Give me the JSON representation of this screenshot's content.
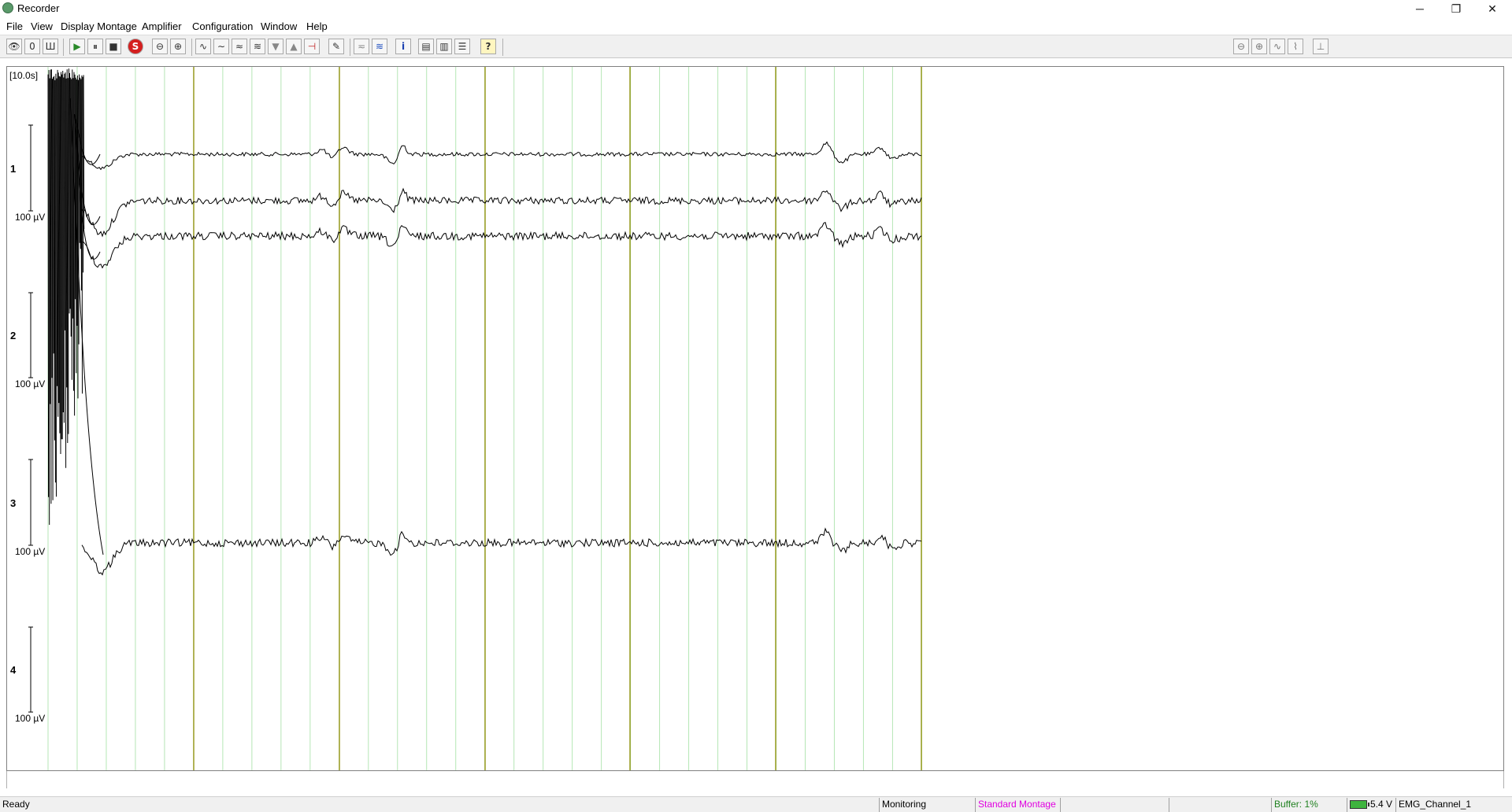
{
  "window": {
    "title": "Recorder",
    "controls": {
      "minimize": "─",
      "restore": "❐",
      "close": "✕"
    }
  },
  "menu": [
    "File",
    "View",
    "Display Montage",
    "Amplifier",
    "Configuration",
    "Window",
    "Help"
  ],
  "toolbar": {
    "buttons": [
      {
        "name": "monitor-eye-icon",
        "glyph": "👁"
      },
      {
        "name": "zero-impedance-icon",
        "glyph": "0"
      },
      {
        "name": "impedance-icon",
        "glyph": "Ш"
      },
      {
        "name": "play-icon",
        "glyph": "▶"
      },
      {
        "name": "pause-icon",
        "glyph": "⏸"
      },
      {
        "name": "stop-icon",
        "glyph": "■"
      },
      {
        "name": "save-record-icon",
        "glyph": "S"
      },
      {
        "name": "zoom-out-icon",
        "glyph": "⊖"
      },
      {
        "name": "zoom-in-icon",
        "glyph": "⊕"
      },
      {
        "name": "raw-signal-icon",
        "glyph": "∿"
      },
      {
        "name": "filter-lowpass-icon",
        "glyph": "∼"
      },
      {
        "name": "filter-highpass-icon",
        "glyph": "≈"
      },
      {
        "name": "filter-notch-icon",
        "glyph": "≋"
      },
      {
        "name": "scale-down-icon",
        "glyph": "▼"
      },
      {
        "name": "scale-up-icon",
        "glyph": "▲"
      },
      {
        "name": "baseline-correction-icon",
        "glyph": "⊣"
      },
      {
        "name": "marker-pen-icon",
        "glyph": "✎"
      },
      {
        "name": "dc-correction-icon",
        "glyph": "≂"
      },
      {
        "name": "overlay-channels-icon",
        "glyph": "≋"
      },
      {
        "name": "info-icon",
        "glyph": "i"
      },
      {
        "name": "layout-stack-icon",
        "glyph": "▤"
      },
      {
        "name": "layout-columns-icon",
        "glyph": "▥"
      },
      {
        "name": "layout-rows-icon",
        "glyph": "☰"
      },
      {
        "name": "help-context-icon",
        "glyph": "?"
      }
    ],
    "right_buttons": [
      {
        "name": "right-zoom-out-icon",
        "glyph": "⊖"
      },
      {
        "name": "right-zoom-in-icon",
        "glyph": "⊕"
      },
      {
        "name": "right-waveform-icon",
        "glyph": "∿"
      },
      {
        "name": "right-trend-icon",
        "glyph": "⌇"
      },
      {
        "name": "right-marker-icon",
        "glyph": "⊥"
      }
    ]
  },
  "display": {
    "timebase": "[10.0s]",
    "channels": [
      {
        "number": "1",
        "scale": "100 µV"
      },
      {
        "number": "2",
        "scale": "100 µV"
      },
      {
        "number": "3",
        "scale": "100 µV"
      },
      {
        "number": "4",
        "scale": "100 µV"
      }
    ],
    "grid": {
      "major_color": "#8c8c00",
      "minor_color": "#b5e6b5"
    },
    "trace_color": "#000000"
  },
  "status": {
    "left": "Ready",
    "mode": "Monitoring",
    "montage": "Standard Montage",
    "buffer": "Buffer: 1%",
    "battery": "5.4 V",
    "channel": "EMG_Channel_1",
    "colors": {
      "montage": "#e000e0",
      "buffer": "#208020"
    }
  }
}
